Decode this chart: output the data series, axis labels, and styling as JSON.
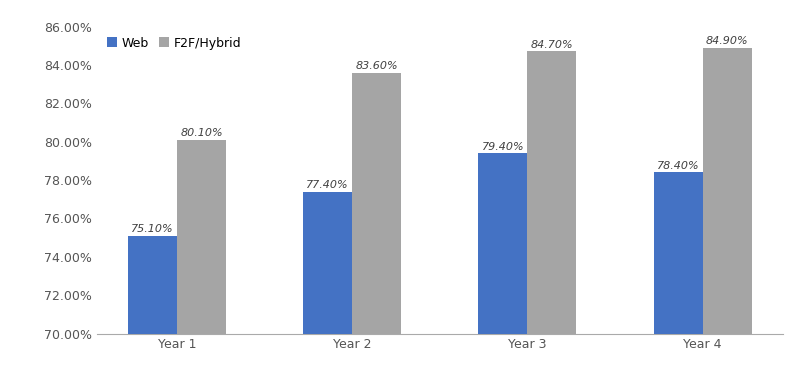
{
  "categories": [
    "Year 1",
    "Year 2",
    "Year 3",
    "Year 4"
  ],
  "web_values": [
    0.751,
    0.774,
    0.794,
    0.784
  ],
  "f2f_values": [
    0.801,
    0.836,
    0.847,
    0.849
  ],
  "web_labels": [
    "75.10%",
    "77.40%",
    "79.40%",
    "78.40%"
  ],
  "f2f_labels": [
    "80.10%",
    "83.60%",
    "84.70%",
    "84.90%"
  ],
  "web_color": "#4472C4",
  "f2f_color": "#A5A5A5",
  "legend_labels": [
    "Web",
    "F2F/Hybrid"
  ],
  "ylim_min": 0.7,
  "ylim_max": 0.86,
  "yticks": [
    0.7,
    0.72,
    0.74,
    0.76,
    0.78,
    0.8,
    0.82,
    0.84,
    0.86
  ],
  "bar_width": 0.28,
  "label_fontsize": 8,
  "tick_fontsize": 9,
  "legend_fontsize": 9,
  "background_color": "#ffffff"
}
